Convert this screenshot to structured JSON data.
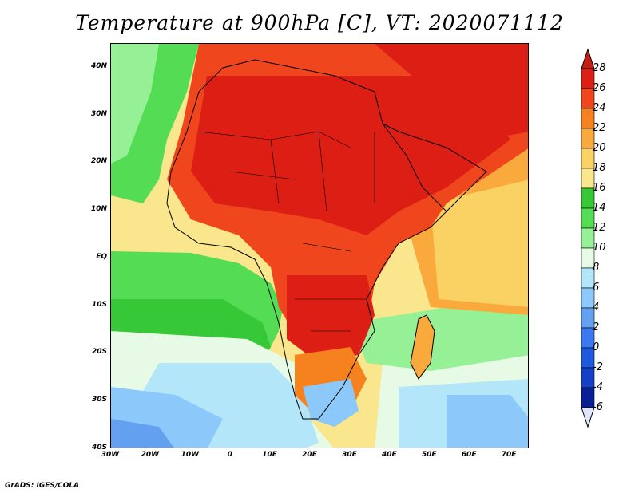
{
  "title": "Temperature at 900hPa [C], VT: 2020071112",
  "credit": "GrADS: IGES/COLA",
  "axes": {
    "lat_labels": [
      "40N",
      "30N",
      "20N",
      "10N",
      "EQ",
      "10S",
      "20S",
      "30S",
      "40S"
    ],
    "lat_values": [
      40,
      30,
      20,
      10,
      0,
      -10,
      -20,
      -30,
      -40
    ],
    "lon_labels": [
      "30W",
      "20W",
      "10W",
      "0",
      "10E",
      "20E",
      "30E",
      "40E",
      "50E",
      "60E",
      "70E"
    ],
    "lon_values": [
      -30,
      -20,
      -10,
      0,
      10,
      20,
      30,
      40,
      50,
      60,
      70
    ],
    "lon_range": [
      -30,
      75
    ],
    "lat_range": [
      -40,
      45
    ]
  },
  "colorbar": {
    "labels": [
      "28",
      "26",
      "24",
      "22",
      "20",
      "18",
      "16",
      "14",
      "12",
      "10",
      "8",
      "6",
      "4",
      "2",
      "0",
      "-2",
      "-4",
      "-6"
    ],
    "colors": [
      "#dc1e14",
      "#f0461e",
      "#f5821e",
      "#faaa3c",
      "#fad264",
      "#fae68c",
      "#37c837",
      "#55dc55",
      "#96f096",
      "#e6fae6",
      "#b4e6fa",
      "#8cc8fa",
      "#64a0f0",
      "#3c78f0",
      "#1e5adc",
      "#1441c8",
      "#0a1e96",
      "#ffffff"
    ],
    "top_color": "#c81e14",
    "bottom_color": "#e0e6ff"
  }
}
